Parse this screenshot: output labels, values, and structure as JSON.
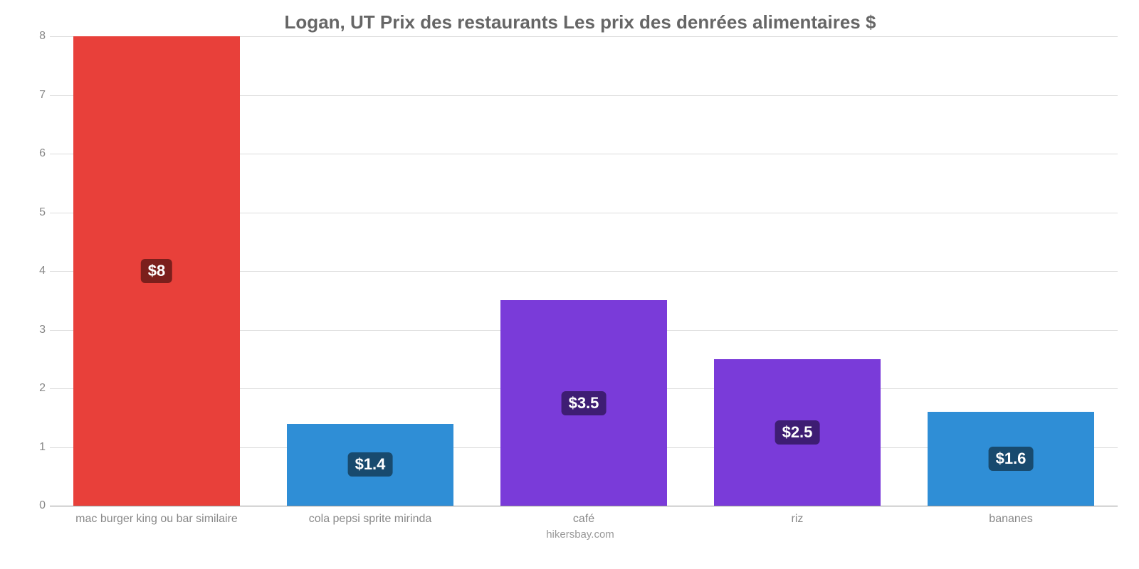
{
  "chart": {
    "type": "bar",
    "title": "Logan, UT Prix des restaurants Les prix des denrées alimentaires $",
    "title_fontsize": 26,
    "title_color": "#666666",
    "background_color": "#ffffff",
    "grid_color": "#dcdcdc",
    "baseline_color": "#909090",
    "axis_label_color": "#888888",
    "axis_label_fontsize": 16,
    "value_label_fontsize": 22,
    "ylim": [
      0,
      8
    ],
    "ytick_step": 1,
    "yticks": [
      0,
      1,
      2,
      3,
      4,
      5,
      6,
      7,
      8
    ],
    "bar_width_pct": 78,
    "categories": [
      "mac burger king ou bar similaire",
      "cola pepsi sprite mirinda",
      "café",
      "riz",
      "bananes"
    ],
    "values": [
      8,
      1.4,
      3.5,
      2.5,
      1.6
    ],
    "value_labels": [
      "$8",
      "$1.4",
      "$3.5",
      "$2.5",
      "$1.6"
    ],
    "bar_colors": [
      "#e8403a",
      "#2f8ed6",
      "#7a3bd9",
      "#7a3bd9",
      "#2f8ed6"
    ],
    "badge_bg_colors": [
      "#7b1f1c",
      "#184a6e",
      "#3e1d73",
      "#3e1d73",
      "#184a6e"
    ],
    "credit": "hikersbay.com",
    "credit_fontsize": 15,
    "credit_color": "#999999"
  }
}
